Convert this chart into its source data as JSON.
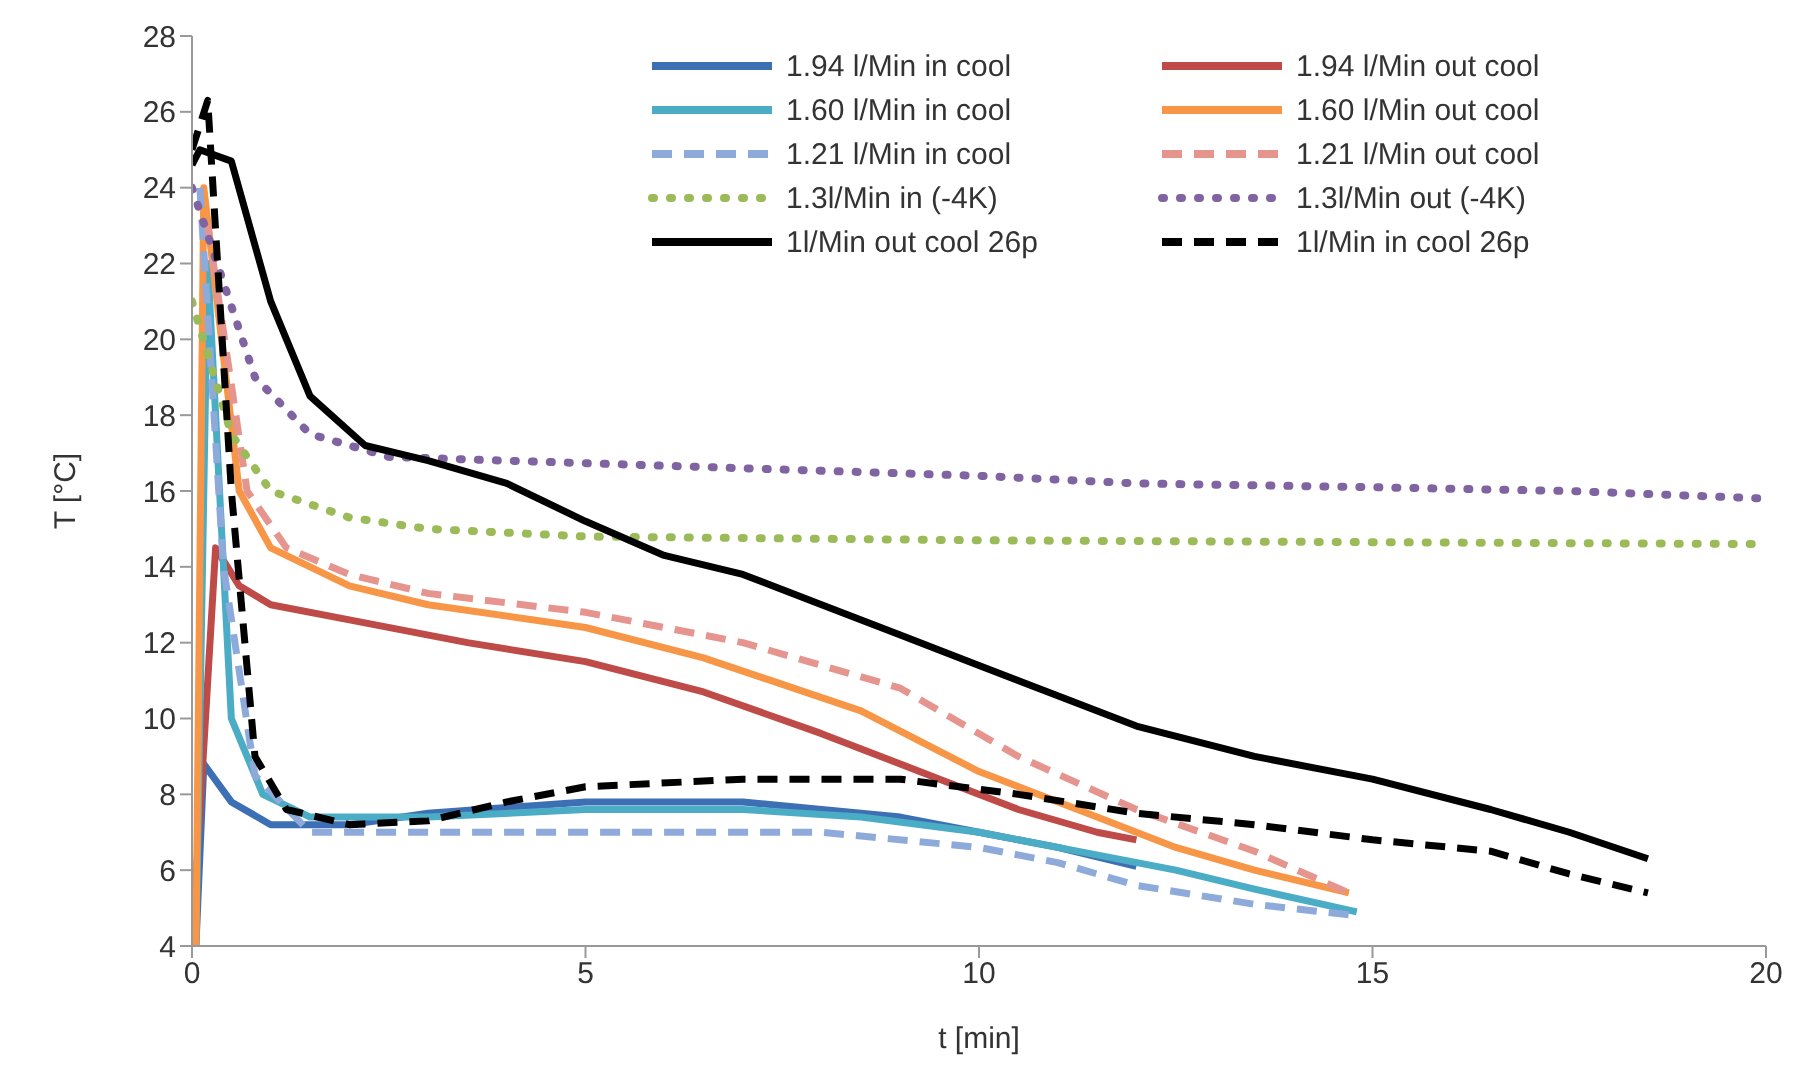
{
  "chart_data": {
    "type": "line",
    "xlabel": "t [min]",
    "ylabel": "T [°C]",
    "xlim": [
      0,
      20
    ],
    "xticks": [
      0,
      5,
      10,
      15,
      20
    ],
    "ylim": [
      4,
      28
    ],
    "yticks": [
      4,
      6,
      8,
      10,
      12,
      14,
      16,
      18,
      20,
      22,
      24,
      26,
      28
    ],
    "grid": false,
    "legend": "top right",
    "marker": "none",
    "series": [
      {
        "name": "1.94 l/Min in cool",
        "color": "#3d6fb4",
        "line_style": "solid",
        "x": [
          0.05,
          0.15,
          0.5,
          1,
          2,
          3,
          5,
          7,
          8,
          9,
          10,
          11,
          12
        ],
        "values": [
          4,
          8.8,
          7.8,
          7.2,
          7.2,
          7.5,
          7.8,
          7.8,
          7.6,
          7.4,
          7.0,
          6.6,
          6.1
        ]
      },
      {
        "name": "1.94 l/Min out cool",
        "color": "#be4b48",
        "line_style": "solid",
        "x": [
          0,
          0.3,
          0.6,
          1,
          2,
          3.5,
          5,
          6.5,
          8,
          9.5,
          10.5,
          11.5,
          12
        ],
        "values": [
          4,
          14.5,
          13.5,
          13,
          12.6,
          12.0,
          11.5,
          10.7,
          9.6,
          8.4,
          7.6,
          7,
          6.8
        ]
      },
      {
        "name": "1.60 l/Min in cool",
        "color": "#4bacc6",
        "line_style": "solid",
        "x": [
          0.05,
          0.2,
          0.5,
          0.9,
          1.5,
          3,
          5,
          7,
          8.5,
          10,
          11,
          12.5,
          13.5,
          14.8
        ],
        "values": [
          4,
          22,
          10,
          8,
          7.4,
          7.4,
          7.6,
          7.6,
          7.4,
          7,
          6.6,
          6,
          5.5,
          4.9
        ]
      },
      {
        "name": "1.60 l/Min out cool",
        "color": "#f79646",
        "line_style": "solid",
        "x": [
          0.05,
          0.15,
          0.6,
          1,
          2,
          3,
          5,
          6.5,
          8.5,
          10,
          11.5,
          12.5,
          13.5,
          14.7
        ],
        "values": [
          4,
          24,
          16,
          14.5,
          13.5,
          13,
          12.4,
          11.6,
          10.2,
          8.6,
          7.4,
          6.6,
          6,
          5.4
        ]
      },
      {
        "name": "1.21 l/Min in cool",
        "color": "#8eaadb",
        "line_style": "dashed",
        "x": [
          0.1,
          0.4,
          0.8,
          1.5,
          5,
          8,
          10,
          11,
          12,
          13.5,
          14.8
        ],
        "values": [
          24,
          14,
          8.5,
          7,
          7,
          7,
          6.6,
          6.2,
          5.6,
          5.1,
          4.8
        ]
      },
      {
        "name": "1.21 l/Min out cool",
        "color": "#e6948e",
        "line_style": "dashed",
        "x": [
          0.2,
          0.7,
          1.2,
          2,
          3,
          5,
          7,
          9,
          10.5,
          12,
          13.5,
          14.7
        ],
        "values": [
          23,
          16,
          14.5,
          13.8,
          13.3,
          12.8,
          12,
          10.8,
          9,
          7.6,
          6.5,
          5.4
        ]
      },
      {
        "name": "1.3l/Min in (-4K)",
        "color": "#9bbb59",
        "line_style": "dotted",
        "x": [
          0,
          0.5,
          1,
          2,
          3,
          5,
          10,
          20
        ],
        "values": [
          21,
          17.5,
          16,
          15.3,
          15,
          14.8,
          14.7,
          14.6
        ]
      },
      {
        "name": "1.3l/Min out (-4K)",
        "color": "#8064a2",
        "line_style": "dotted",
        "x": [
          0,
          0.8,
          1.5,
          2.5,
          4,
          7,
          10,
          12,
          15,
          17.5,
          20
        ],
        "values": [
          24,
          19,
          17.5,
          16.9,
          16.8,
          16.6,
          16.4,
          16.2,
          16.1,
          16,
          15.8
        ]
      },
      {
        "name": "1l/Min out cool 26p",
        "color": "#000000",
        "line_style": "solid",
        "x": [
          0,
          0.1,
          0.5,
          1,
          1.5,
          2.2,
          3,
          4,
          5,
          6,
          7,
          8,
          9,
          10,
          11,
          12,
          13.5,
          15,
          16.5,
          17.5,
          18.5
        ],
        "values": [
          24.6,
          25,
          24.7,
          21,
          18.5,
          17.2,
          16.8,
          16.2,
          15.2,
          14.3,
          13.8,
          13,
          12.2,
          11.4,
          10.6,
          9.8,
          9,
          8.4,
          7.6,
          7,
          6.3
        ]
      },
      {
        "name": "1l/Min in cool 26p",
        "color": "#000000",
        "line_style": "dashed",
        "x": [
          0,
          0.2,
          0.5,
          0.8,
          1.2,
          2,
          3,
          4,
          5,
          7,
          9,
          10.5,
          12,
          13.5,
          15,
          16.5,
          17.5,
          18.5
        ],
        "values": [
          25,
          26.3,
          16,
          9,
          7.6,
          7.2,
          7.3,
          7.8,
          8.2,
          8.4,
          8.4,
          8,
          7.5,
          7.2,
          6.8,
          6.5,
          5.9,
          5.4
        ]
      }
    ]
  }
}
